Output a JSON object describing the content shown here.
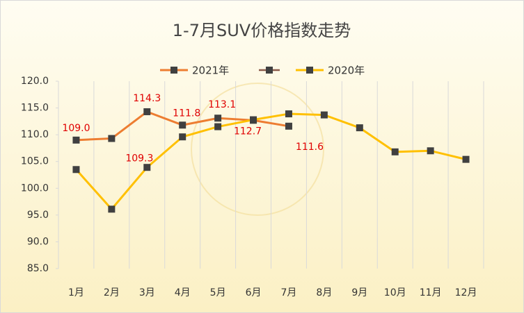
{
  "chart_data": {
    "type": "line",
    "title": "1-7月SUV价格指数走势",
    "categories": [
      "1月",
      "2月",
      "3月",
      "4月",
      "5月",
      "6月",
      "7月",
      "8月",
      "9月",
      "10月",
      "11月",
      "12月"
    ],
    "series": [
      {
        "name": "2021年",
        "color": "#ed7d31",
        "values": [
          109,
          109.3,
          114.3,
          111.8,
          113.1,
          112.7,
          111.6,
          null,
          null,
          null,
          null,
          null
        ],
        "value_labels": [
          "109.0",
          "109.3",
          "114.3",
          "111.8",
          "113.1",
          "112.7",
          "111.6",
          null,
          null,
          null,
          null,
          null
        ]
      },
      {
        "name": "2020年",
        "color": "#ffc000",
        "values": [
          103.5,
          96.1,
          103.9,
          109.6,
          111.5,
          112.8,
          113.9,
          113.7,
          111.3,
          106.8,
          107.0,
          105.4
        ]
      }
    ],
    "ylim": [
      85,
      120
    ],
    "yticks": [
      {
        "value": 85,
        "label": "85.0"
      },
      {
        "value": 90,
        "label": "90.0"
      },
      {
        "value": 95,
        "label": "95.0"
      },
      {
        "value": 100,
        "label": "100.0"
      },
      {
        "value": 105,
        "label": "105.0"
      },
      {
        "value": 110,
        "label": "110.0"
      },
      {
        "value": 115,
        "label": "115.0"
      },
      {
        "value": 120,
        "label": "120.0"
      }
    ],
    "legend": "top"
  }
}
